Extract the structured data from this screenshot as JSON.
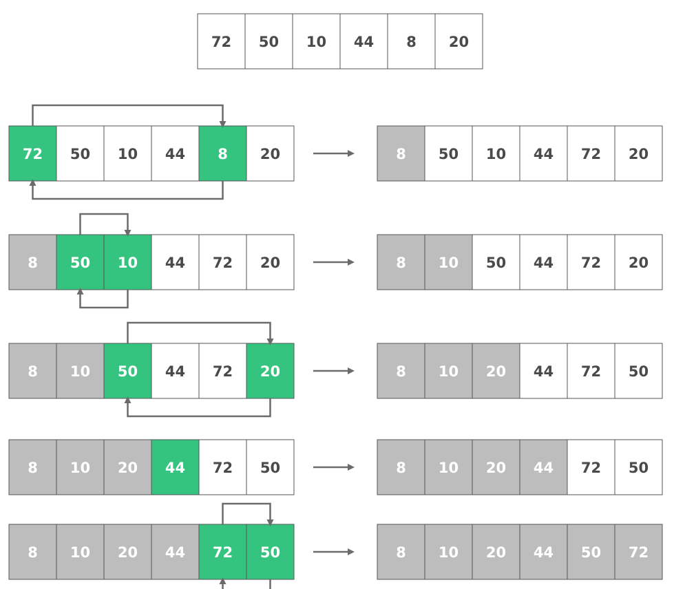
{
  "colors": {
    "selected": "#34c47f",
    "sorted": "#bdbdbd",
    "empty": "#ffffff",
    "border": "#555555",
    "text_dark": "#4a4a4a",
    "text_light": "#ffffff",
    "arrow": "#6b6b6b"
  },
  "initial_array": [
    "72",
    "50",
    "10",
    "44",
    "8",
    "20"
  ],
  "steps": [
    {
      "before": [
        {
          "value": "72",
          "state": "selected"
        },
        {
          "value": "50",
          "state": "empty"
        },
        {
          "value": "10",
          "state": "empty"
        },
        {
          "value": "44",
          "state": "empty"
        },
        {
          "value": "8",
          "state": "selected"
        },
        {
          "value": "20",
          "state": "empty"
        }
      ],
      "after": [
        {
          "value": "8",
          "state": "sorted"
        },
        {
          "value": "50",
          "state": "empty"
        },
        {
          "value": "10",
          "state": "empty"
        },
        {
          "value": "44",
          "state": "empty"
        },
        {
          "value": "72",
          "state": "empty"
        },
        {
          "value": "20",
          "state": "empty"
        }
      ],
      "swap": [
        0,
        4
      ]
    },
    {
      "before": [
        {
          "value": "8",
          "state": "sorted"
        },
        {
          "value": "50",
          "state": "selected"
        },
        {
          "value": "10",
          "state": "selected"
        },
        {
          "value": "44",
          "state": "empty"
        },
        {
          "value": "72",
          "state": "empty"
        },
        {
          "value": "20",
          "state": "empty"
        }
      ],
      "after": [
        {
          "value": "8",
          "state": "sorted"
        },
        {
          "value": "10",
          "state": "sorted"
        },
        {
          "value": "50",
          "state": "empty"
        },
        {
          "value": "44",
          "state": "empty"
        },
        {
          "value": "72",
          "state": "empty"
        },
        {
          "value": "20",
          "state": "empty"
        }
      ],
      "swap": [
        1,
        2
      ]
    },
    {
      "before": [
        {
          "value": "8",
          "state": "sorted"
        },
        {
          "value": "10",
          "state": "sorted"
        },
        {
          "value": "50",
          "state": "selected"
        },
        {
          "value": "44",
          "state": "empty"
        },
        {
          "value": "72",
          "state": "empty"
        },
        {
          "value": "20",
          "state": "selected"
        }
      ],
      "after": [
        {
          "value": "8",
          "state": "sorted"
        },
        {
          "value": "10",
          "state": "sorted"
        },
        {
          "value": "20",
          "state": "sorted"
        },
        {
          "value": "44",
          "state": "empty"
        },
        {
          "value": "72",
          "state": "empty"
        },
        {
          "value": "50",
          "state": "empty"
        }
      ],
      "swap": [
        2,
        5
      ]
    },
    {
      "before": [
        {
          "value": "8",
          "state": "sorted"
        },
        {
          "value": "10",
          "state": "sorted"
        },
        {
          "value": "20",
          "state": "sorted"
        },
        {
          "value": "44",
          "state": "selected"
        },
        {
          "value": "72",
          "state": "empty"
        },
        {
          "value": "50",
          "state": "empty"
        }
      ],
      "after": [
        {
          "value": "8",
          "state": "sorted"
        },
        {
          "value": "10",
          "state": "sorted"
        },
        {
          "value": "20",
          "state": "sorted"
        },
        {
          "value": "44",
          "state": "sorted"
        },
        {
          "value": "72",
          "state": "empty"
        },
        {
          "value": "50",
          "state": "empty"
        }
      ],
      "swap": null
    },
    {
      "before": [
        {
          "value": "8",
          "state": "sorted"
        },
        {
          "value": "10",
          "state": "sorted"
        },
        {
          "value": "20",
          "state": "sorted"
        },
        {
          "value": "44",
          "state": "sorted"
        },
        {
          "value": "72",
          "state": "selected"
        },
        {
          "value": "50",
          "state": "selected"
        }
      ],
      "after": [
        {
          "value": "8",
          "state": "sorted"
        },
        {
          "value": "10",
          "state": "sorted"
        },
        {
          "value": "20",
          "state": "sorted"
        },
        {
          "value": "44",
          "state": "sorted"
        },
        {
          "value": "50",
          "state": "sorted"
        },
        {
          "value": "72",
          "state": "sorted"
        }
      ],
      "swap": [
        4,
        5
      ]
    }
  ]
}
